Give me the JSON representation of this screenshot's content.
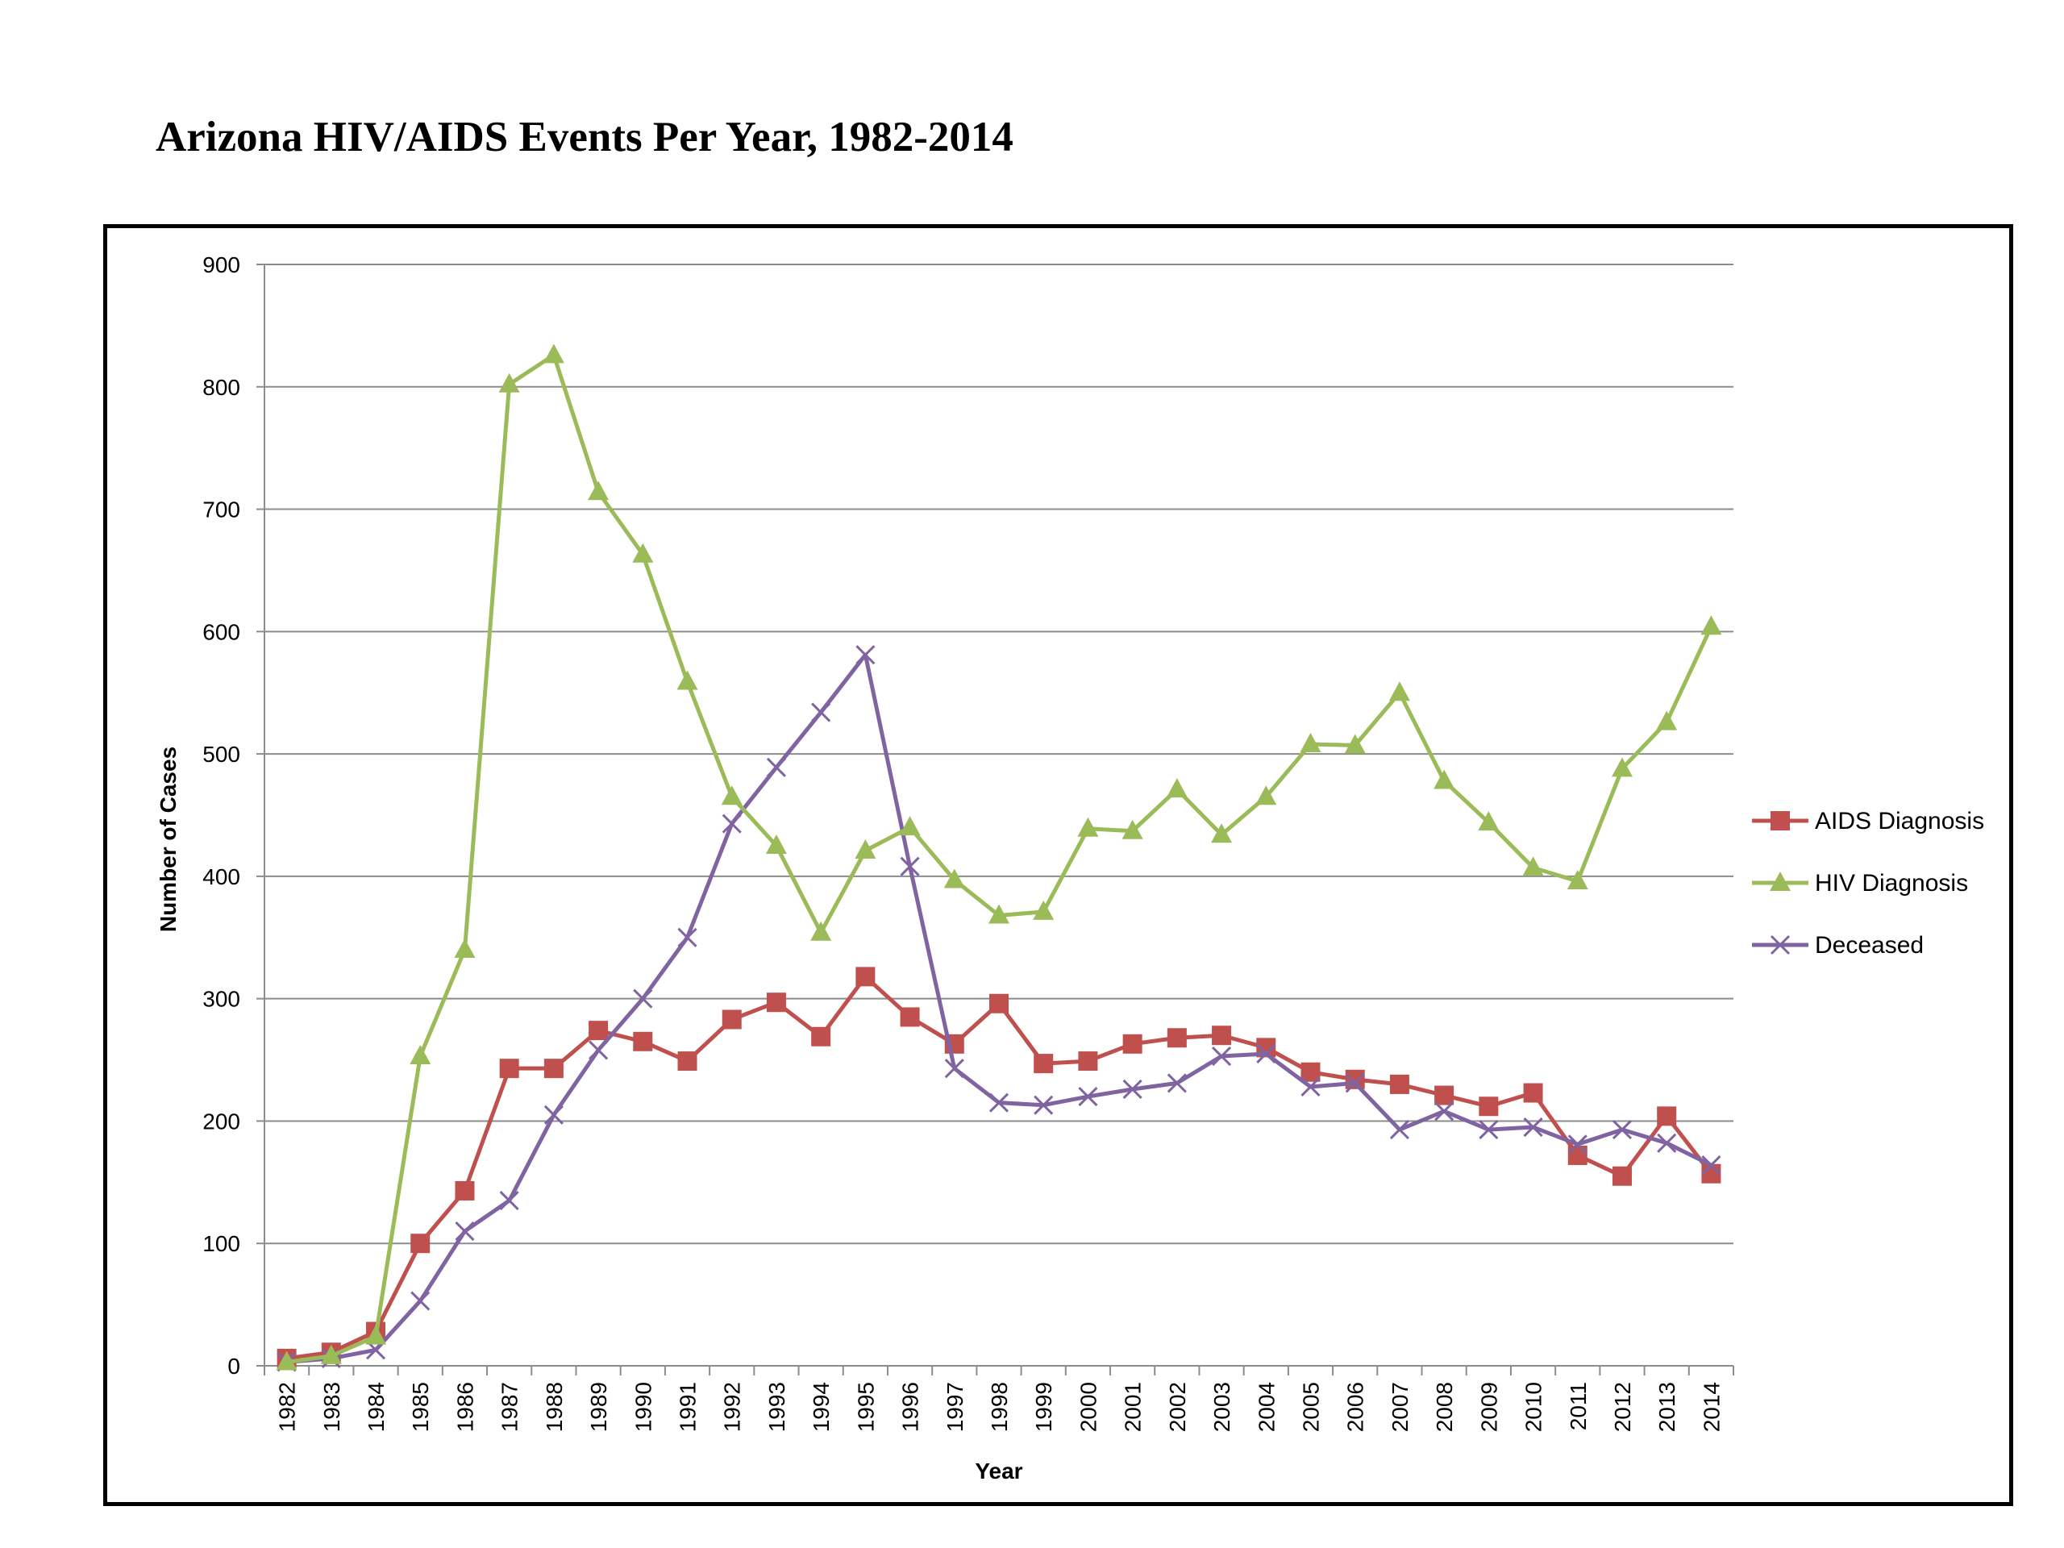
{
  "title": "Arizona HIV/AIDS Events Per Year, 1982-2014",
  "chart_data": {
    "type": "line",
    "title": "Arizona HIV/AIDS Events Per Year, 1982-2014",
    "xlabel": "Year",
    "ylabel": "Number of Cases",
    "ylim": [
      0,
      900
    ],
    "yticks": [
      0,
      100,
      200,
      300,
      400,
      500,
      600,
      700,
      800,
      900
    ],
    "grid": true,
    "legend_position": "right",
    "categories": [
      "1982",
      "1983",
      "1984",
      "1985",
      "1986",
      "1987",
      "1988",
      "1989",
      "1990",
      "1991",
      "1992",
      "1993",
      "1994",
      "1995",
      "1996",
      "1997",
      "1998",
      "1999",
      "2000",
      "2001",
      "2002",
      "2003",
      "2004",
      "2005",
      "2006",
      "2007",
      "2008",
      "2009",
      "2010",
      "2011",
      "2012",
      "2013",
      "2014"
    ],
    "series": [
      {
        "name": "AIDS Diagnosis",
        "color": "#C0504D",
        "marker": "square",
        "values": [
          6,
          11,
          28,
          100,
          143,
          243,
          243,
          274,
          265,
          249,
          283,
          297,
          269,
          318,
          285,
          263,
          296,
          247,
          249,
          263,
          268,
          270,
          260,
          240,
          234,
          230,
          221,
          212,
          223,
          172,
          155,
          204,
          157
        ]
      },
      {
        "name": "HIV Diagnosis",
        "color": "#9BBB59",
        "marker": "triangle",
        "values": [
          3,
          8,
          24,
          253,
          340,
          802,
          826,
          714,
          663,
          559,
          465,
          425,
          354,
          421,
          440,
          397,
          368,
          371,
          439,
          437,
          471,
          434,
          465,
          508,
          507,
          550,
          478,
          444,
          407,
          396,
          488,
          526,
          604
        ]
      },
      {
        "name": "Deceased",
        "color": "#8064A2",
        "marker": "x",
        "values": [
          3,
          6,
          13,
          53,
          110,
          135,
          205,
          258,
          300,
          350,
          443,
          489,
          534,
          581,
          408,
          243,
          215,
          213,
          220,
          226,
          231,
          253,
          255,
          228,
          231,
          193,
          208,
          193,
          195,
          181,
          193,
          182,
          164
        ]
      }
    ]
  }
}
